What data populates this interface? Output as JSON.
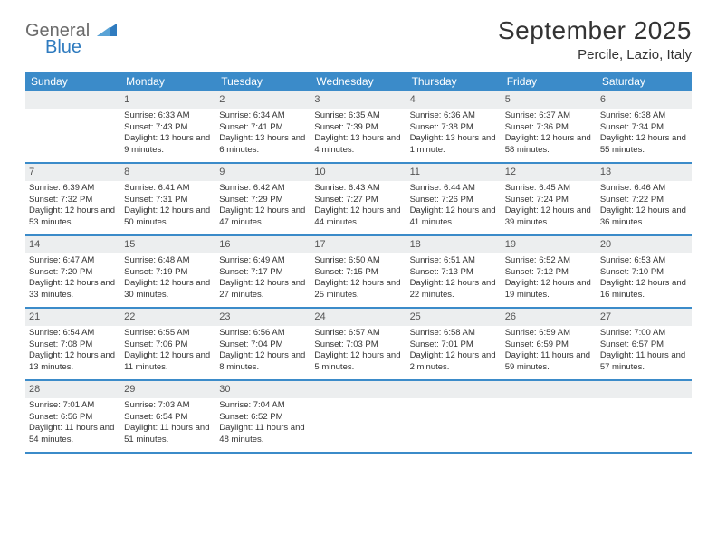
{
  "brand": {
    "name_gray": "General",
    "name_blue": "Blue",
    "icon_color": "#2f7bbf"
  },
  "header": {
    "title": "September 2025",
    "location": "Percile, Lazio, Italy"
  },
  "colors": {
    "header_bg": "#3b8bc9",
    "daynum_bg": "#eceeef",
    "week_border": "#3b8bc9",
    "text": "#333333",
    "logo_gray": "#6b6b6b",
    "logo_blue": "#2f7bbf"
  },
  "days_of_week": [
    "Sunday",
    "Monday",
    "Tuesday",
    "Wednesday",
    "Thursday",
    "Friday",
    "Saturday"
  ],
  "weeks": [
    [
      {
        "n": "",
        "sunrise": "",
        "sunset": "",
        "daylight": ""
      },
      {
        "n": "1",
        "sunrise": "Sunrise: 6:33 AM",
        "sunset": "Sunset: 7:43 PM",
        "daylight": "Daylight: 13 hours and 9 minutes."
      },
      {
        "n": "2",
        "sunrise": "Sunrise: 6:34 AM",
        "sunset": "Sunset: 7:41 PM",
        "daylight": "Daylight: 13 hours and 6 minutes."
      },
      {
        "n": "3",
        "sunrise": "Sunrise: 6:35 AM",
        "sunset": "Sunset: 7:39 PM",
        "daylight": "Daylight: 13 hours and 4 minutes."
      },
      {
        "n": "4",
        "sunrise": "Sunrise: 6:36 AM",
        "sunset": "Sunset: 7:38 PM",
        "daylight": "Daylight: 13 hours and 1 minute."
      },
      {
        "n": "5",
        "sunrise": "Sunrise: 6:37 AM",
        "sunset": "Sunset: 7:36 PM",
        "daylight": "Daylight: 12 hours and 58 minutes."
      },
      {
        "n": "6",
        "sunrise": "Sunrise: 6:38 AM",
        "sunset": "Sunset: 7:34 PM",
        "daylight": "Daylight: 12 hours and 55 minutes."
      }
    ],
    [
      {
        "n": "7",
        "sunrise": "Sunrise: 6:39 AM",
        "sunset": "Sunset: 7:32 PM",
        "daylight": "Daylight: 12 hours and 53 minutes."
      },
      {
        "n": "8",
        "sunrise": "Sunrise: 6:41 AM",
        "sunset": "Sunset: 7:31 PM",
        "daylight": "Daylight: 12 hours and 50 minutes."
      },
      {
        "n": "9",
        "sunrise": "Sunrise: 6:42 AM",
        "sunset": "Sunset: 7:29 PM",
        "daylight": "Daylight: 12 hours and 47 minutes."
      },
      {
        "n": "10",
        "sunrise": "Sunrise: 6:43 AM",
        "sunset": "Sunset: 7:27 PM",
        "daylight": "Daylight: 12 hours and 44 minutes."
      },
      {
        "n": "11",
        "sunrise": "Sunrise: 6:44 AM",
        "sunset": "Sunset: 7:26 PM",
        "daylight": "Daylight: 12 hours and 41 minutes."
      },
      {
        "n": "12",
        "sunrise": "Sunrise: 6:45 AM",
        "sunset": "Sunset: 7:24 PM",
        "daylight": "Daylight: 12 hours and 39 minutes."
      },
      {
        "n": "13",
        "sunrise": "Sunrise: 6:46 AM",
        "sunset": "Sunset: 7:22 PM",
        "daylight": "Daylight: 12 hours and 36 minutes."
      }
    ],
    [
      {
        "n": "14",
        "sunrise": "Sunrise: 6:47 AM",
        "sunset": "Sunset: 7:20 PM",
        "daylight": "Daylight: 12 hours and 33 minutes."
      },
      {
        "n": "15",
        "sunrise": "Sunrise: 6:48 AM",
        "sunset": "Sunset: 7:19 PM",
        "daylight": "Daylight: 12 hours and 30 minutes."
      },
      {
        "n": "16",
        "sunrise": "Sunrise: 6:49 AM",
        "sunset": "Sunset: 7:17 PM",
        "daylight": "Daylight: 12 hours and 27 minutes."
      },
      {
        "n": "17",
        "sunrise": "Sunrise: 6:50 AM",
        "sunset": "Sunset: 7:15 PM",
        "daylight": "Daylight: 12 hours and 25 minutes."
      },
      {
        "n": "18",
        "sunrise": "Sunrise: 6:51 AM",
        "sunset": "Sunset: 7:13 PM",
        "daylight": "Daylight: 12 hours and 22 minutes."
      },
      {
        "n": "19",
        "sunrise": "Sunrise: 6:52 AM",
        "sunset": "Sunset: 7:12 PM",
        "daylight": "Daylight: 12 hours and 19 minutes."
      },
      {
        "n": "20",
        "sunrise": "Sunrise: 6:53 AM",
        "sunset": "Sunset: 7:10 PM",
        "daylight": "Daylight: 12 hours and 16 minutes."
      }
    ],
    [
      {
        "n": "21",
        "sunrise": "Sunrise: 6:54 AM",
        "sunset": "Sunset: 7:08 PM",
        "daylight": "Daylight: 12 hours and 13 minutes."
      },
      {
        "n": "22",
        "sunrise": "Sunrise: 6:55 AM",
        "sunset": "Sunset: 7:06 PM",
        "daylight": "Daylight: 12 hours and 11 minutes."
      },
      {
        "n": "23",
        "sunrise": "Sunrise: 6:56 AM",
        "sunset": "Sunset: 7:04 PM",
        "daylight": "Daylight: 12 hours and 8 minutes."
      },
      {
        "n": "24",
        "sunrise": "Sunrise: 6:57 AM",
        "sunset": "Sunset: 7:03 PM",
        "daylight": "Daylight: 12 hours and 5 minutes."
      },
      {
        "n": "25",
        "sunrise": "Sunrise: 6:58 AM",
        "sunset": "Sunset: 7:01 PM",
        "daylight": "Daylight: 12 hours and 2 minutes."
      },
      {
        "n": "26",
        "sunrise": "Sunrise: 6:59 AM",
        "sunset": "Sunset: 6:59 PM",
        "daylight": "Daylight: 11 hours and 59 minutes."
      },
      {
        "n": "27",
        "sunrise": "Sunrise: 7:00 AM",
        "sunset": "Sunset: 6:57 PM",
        "daylight": "Daylight: 11 hours and 57 minutes."
      }
    ],
    [
      {
        "n": "28",
        "sunrise": "Sunrise: 7:01 AM",
        "sunset": "Sunset: 6:56 PM",
        "daylight": "Daylight: 11 hours and 54 minutes."
      },
      {
        "n": "29",
        "sunrise": "Sunrise: 7:03 AM",
        "sunset": "Sunset: 6:54 PM",
        "daylight": "Daylight: 11 hours and 51 minutes."
      },
      {
        "n": "30",
        "sunrise": "Sunrise: 7:04 AM",
        "sunset": "Sunset: 6:52 PM",
        "daylight": "Daylight: 11 hours and 48 minutes."
      },
      {
        "n": "",
        "sunrise": "",
        "sunset": "",
        "daylight": ""
      },
      {
        "n": "",
        "sunrise": "",
        "sunset": "",
        "daylight": ""
      },
      {
        "n": "",
        "sunrise": "",
        "sunset": "",
        "daylight": ""
      },
      {
        "n": "",
        "sunrise": "",
        "sunset": "",
        "daylight": ""
      }
    ]
  ]
}
